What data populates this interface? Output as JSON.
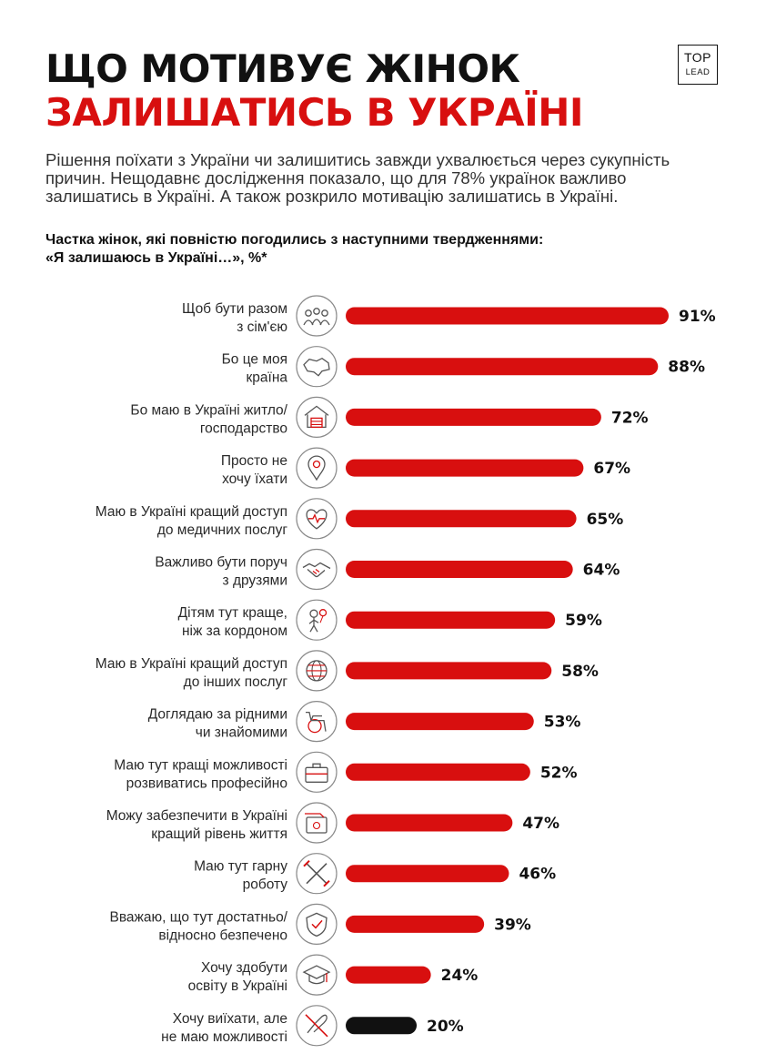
{
  "header": {
    "title_line1": "ЩО МОТИВУЄ ЖІНОК",
    "title_line2": "ЗАЛИШАТИСЬ В УКРАЇНІ",
    "logo_top": "TOP",
    "logo_bottom": "LEAD"
  },
  "intro": "Рішення поїхати з України чи залишитись завжди ухвалюється через сукупність причин. Нещодавнє дослідження показало, що для 78% українок важливо залишатись в Україні. А також розкрило мотивацію залишатись в Україні.",
  "chart_data": {
    "type": "bar",
    "orientation": "horizontal",
    "title": "Частка жінок, які повністю погодились з наступними твердженнями:",
    "subtitle": "«Я залишаюсь в Україні…», %*",
    "unit": "%",
    "categories": [
      [
        "Щоб бути разом",
        "з сім'єю"
      ],
      [
        "Бо це моя",
        "країна"
      ],
      [
        "Бо маю в Україні житло/",
        "господарство"
      ],
      [
        "Просто не",
        "хочу їхати"
      ],
      [
        "Маю в Україні кращий доступ",
        "до медичних послуг"
      ],
      [
        "Важливо бути поруч",
        "з друзями"
      ],
      [
        "Дітям тут краще,",
        "ніж за кордоном"
      ],
      [
        "Маю в Україні кращий доступ",
        "до інших  послуг"
      ],
      [
        "Доглядаю за рідними",
        "чи знайомими"
      ],
      [
        "Маю тут кращі можливості",
        "розвиватись професійно"
      ],
      [
        "Можу забезпечити в Україні",
        "кращий рівень життя"
      ],
      [
        "Маю тут гарну",
        "роботу"
      ],
      [
        "Вважаю, що тут достатньо/",
        "відносно безпечено"
      ],
      [
        "Хочу здобути",
        "освіту в Україні"
      ],
      [
        "Хочу виїхати, але",
        "не маю можливості"
      ]
    ],
    "values": [
      91,
      88,
      72,
      67,
      65,
      64,
      59,
      58,
      53,
      52,
      47,
      46,
      39,
      24,
      20
    ],
    "value_labels": [
      "91%",
      "88%",
      "72%",
      "67%",
      "65%",
      "64%",
      "59%",
      "58%",
      "53%",
      "52%",
      "47%",
      "46%",
      "39%",
      "24%",
      "20%"
    ],
    "icons": [
      "family-icon",
      "ukraine-map-icon",
      "house-icon",
      "location-pin-icon",
      "heart-pulse-icon",
      "handshake-icon",
      "child-icon",
      "globe-icon",
      "wheelchair-icon",
      "briefcase-icon",
      "wallet-icon",
      "tools-icon",
      "shield-check-icon",
      "graduation-cap-icon",
      "no-travel-icon"
    ],
    "bar_colors": [
      "#d80f0f",
      "#d80f0f",
      "#d80f0f",
      "#d80f0f",
      "#d80f0f",
      "#d80f0f",
      "#d80f0f",
      "#d80f0f",
      "#d80f0f",
      "#d80f0f",
      "#d80f0f",
      "#d80f0f",
      "#d80f0f",
      "#d80f0f",
      "#111111"
    ],
    "xlim": [
      0,
      100
    ],
    "grid": false,
    "legend": "none"
  },
  "colors": {
    "accent": "#d80f0f",
    "text": "#222222",
    "dark_bar": "#111111",
    "icon_outline": "#555555"
  }
}
